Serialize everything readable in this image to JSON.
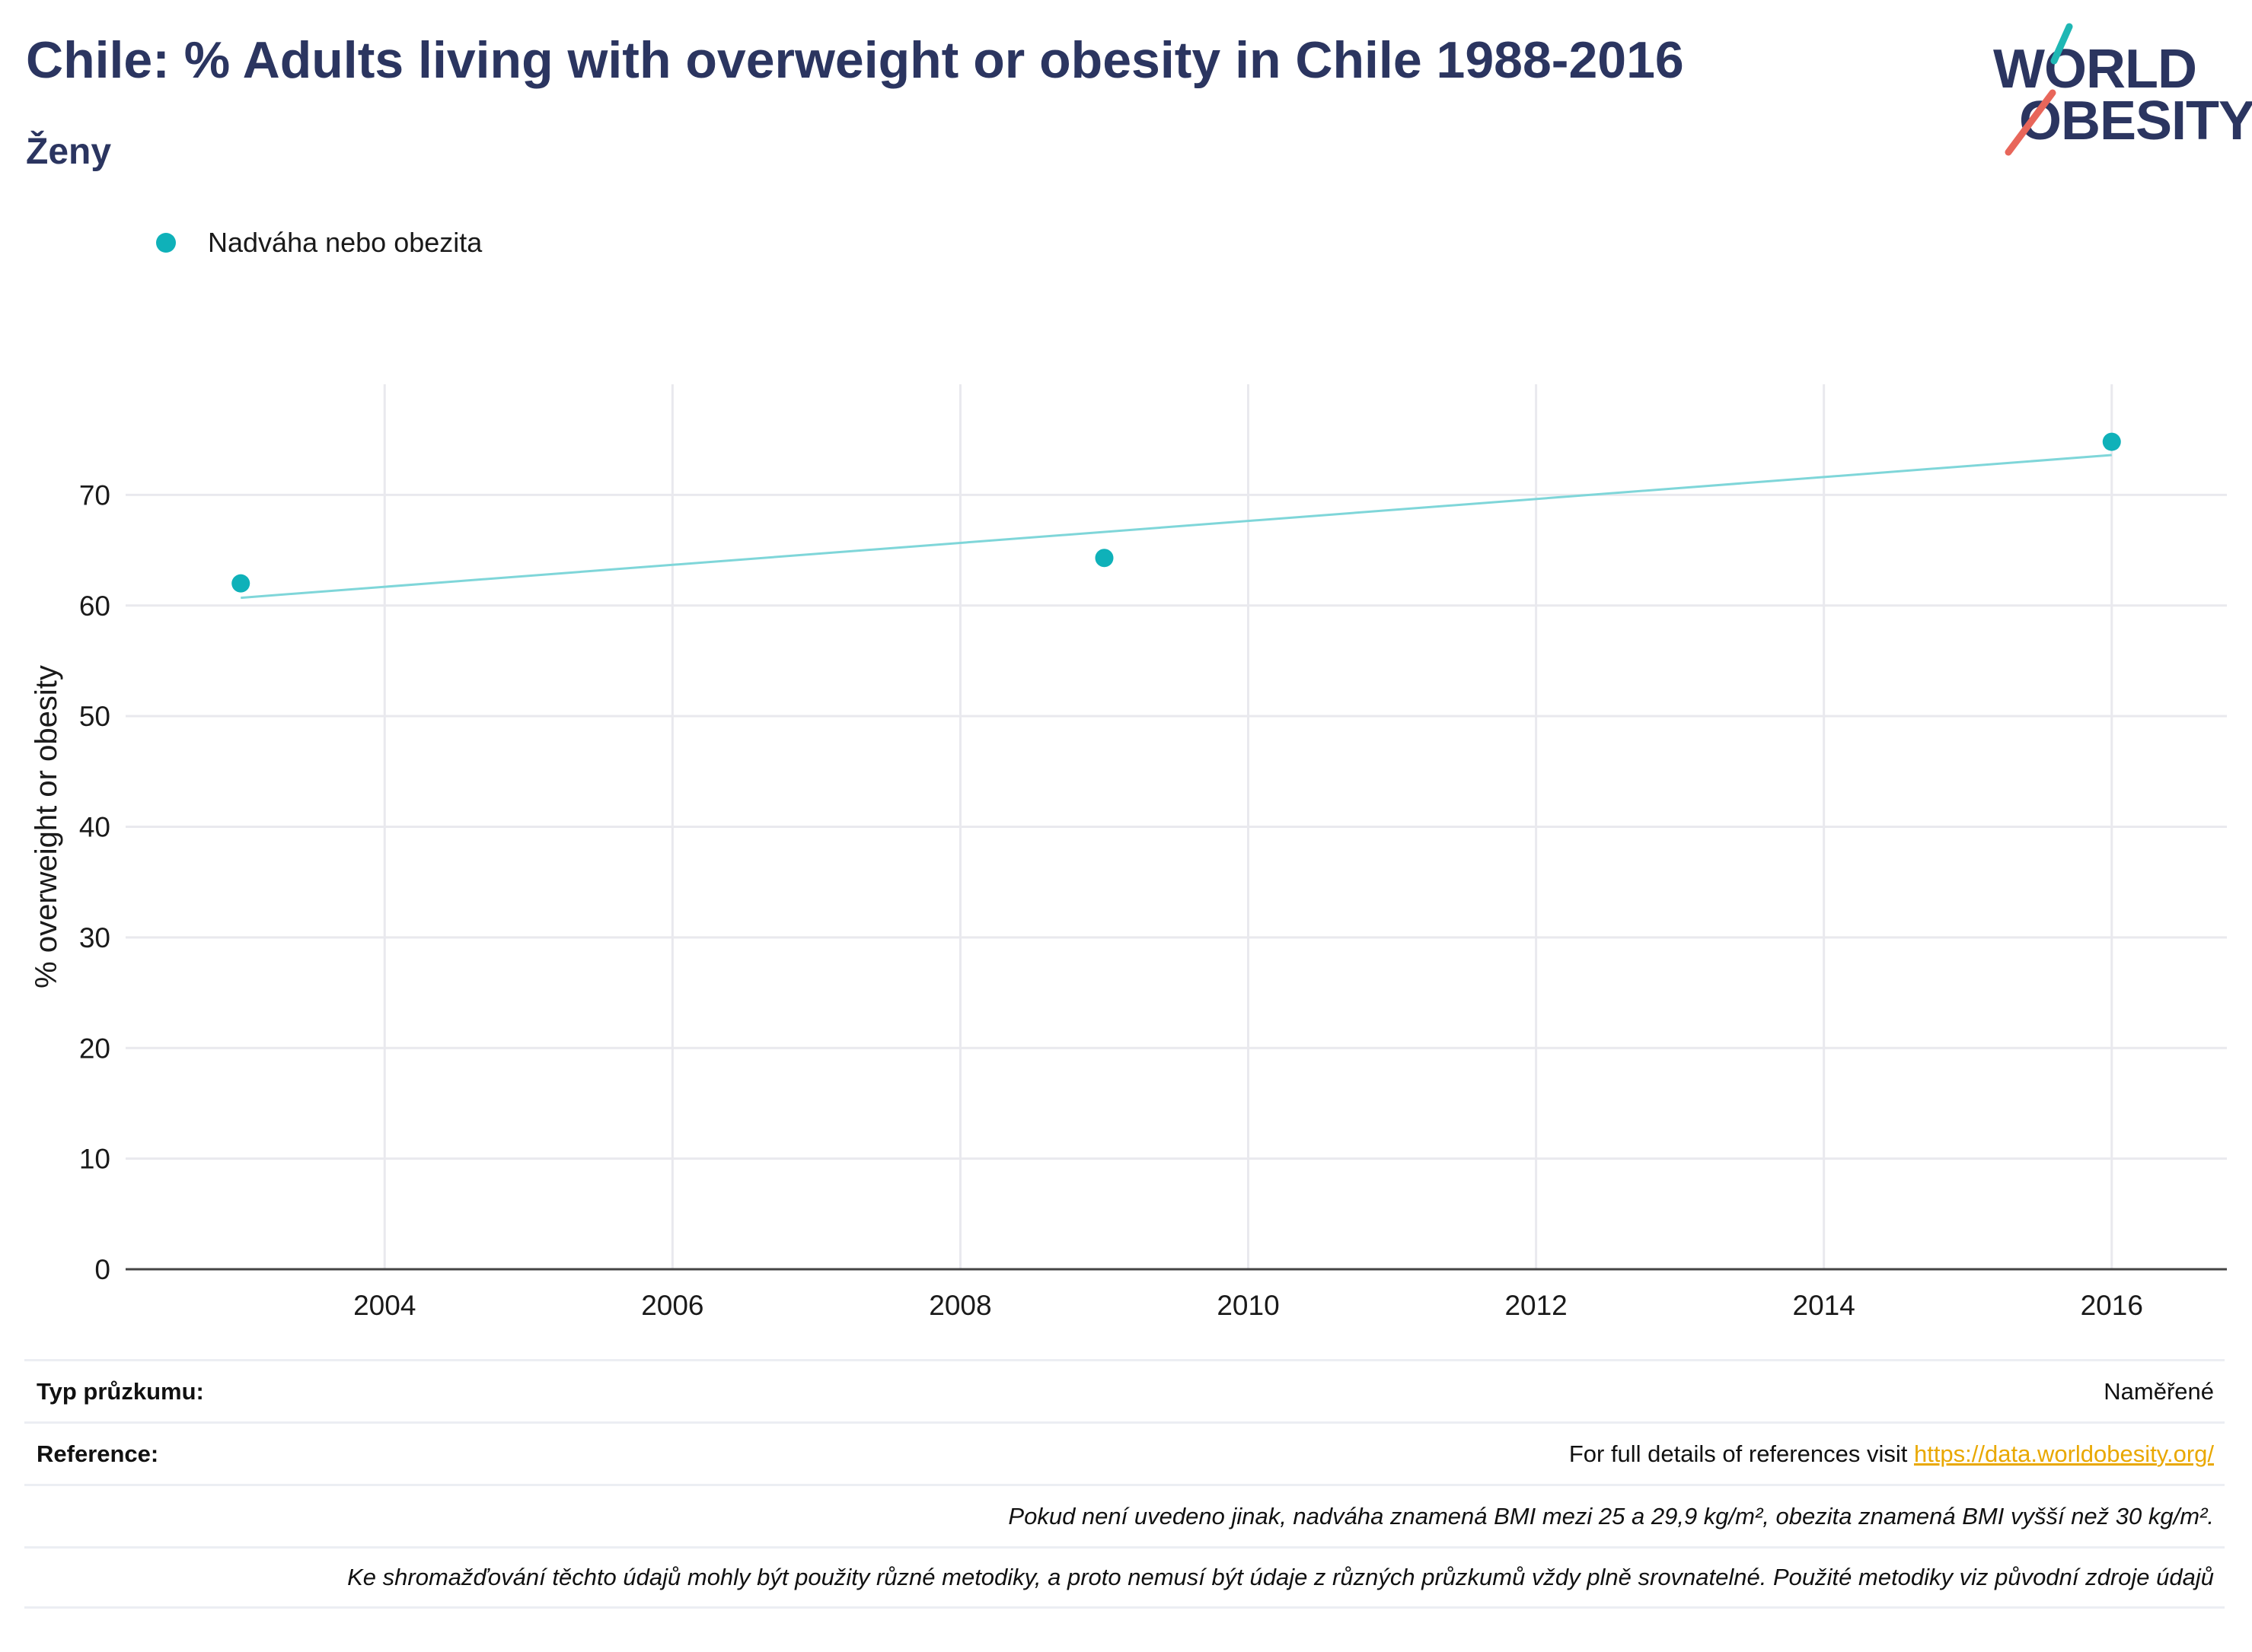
{
  "header": {
    "title": "Chile: % Adults living with overweight or obesity in Chile 1988-2016",
    "subtitle": "Ženy"
  },
  "logo": {
    "line1": "WORLD",
    "line2": "OBESITY",
    "colors": {
      "text": "#2b3560",
      "slash_top": "#1fb7b4",
      "slash_bottom": "#e8665a"
    }
  },
  "legend": {
    "label": "Nadváha nebo obezita"
  },
  "chart_data": {
    "type": "scatter",
    "title": "",
    "xlabel": "",
    "ylabel": "% overweight or obesity",
    "xlim": [
      2002.2,
      2016.8
    ],
    "ylim": [
      0,
      80
    ],
    "x_ticks": [
      2004,
      2006,
      2008,
      2010,
      2012,
      2014,
      2016
    ],
    "y_ticks": [
      0,
      10,
      20,
      30,
      40,
      50,
      60,
      70
    ],
    "grid": true,
    "legend_position": "top-left",
    "series": [
      {
        "name": "Nadváha nebo obezita",
        "color": "#0fb1b9",
        "points": [
          {
            "x": 2003,
            "y": 62.0
          },
          {
            "x": 2009,
            "y": 64.3
          },
          {
            "x": 2016,
            "y": 74.8
          }
        ]
      }
    ],
    "trendline": {
      "color": "#7fd6d9",
      "points": [
        {
          "x": 2003,
          "y": 60.7
        },
        {
          "x": 2016,
          "y": 73.6
        }
      ]
    }
  },
  "info": {
    "survey_type_label": "Typ průzkumu:",
    "survey_type_value": "Naměřené",
    "reference_label": "Reference:",
    "reference_text": "For full details of references visit",
    "reference_link": "https://data.worldobesity.org/",
    "note1": "Pokud není uvedeno jinak, nadváha znamená BMI mezi 25 a 29,9 kg/m², obezita znamená BMI vyšší než 30 kg/m².",
    "note2": "Ke shromažďování těchto údajů mohly být použity různé metodiky, a proto nemusí být údaje z různých průzkumů vždy plně srovnatelné. Použité metodiky viz původní zdroje údajů"
  }
}
